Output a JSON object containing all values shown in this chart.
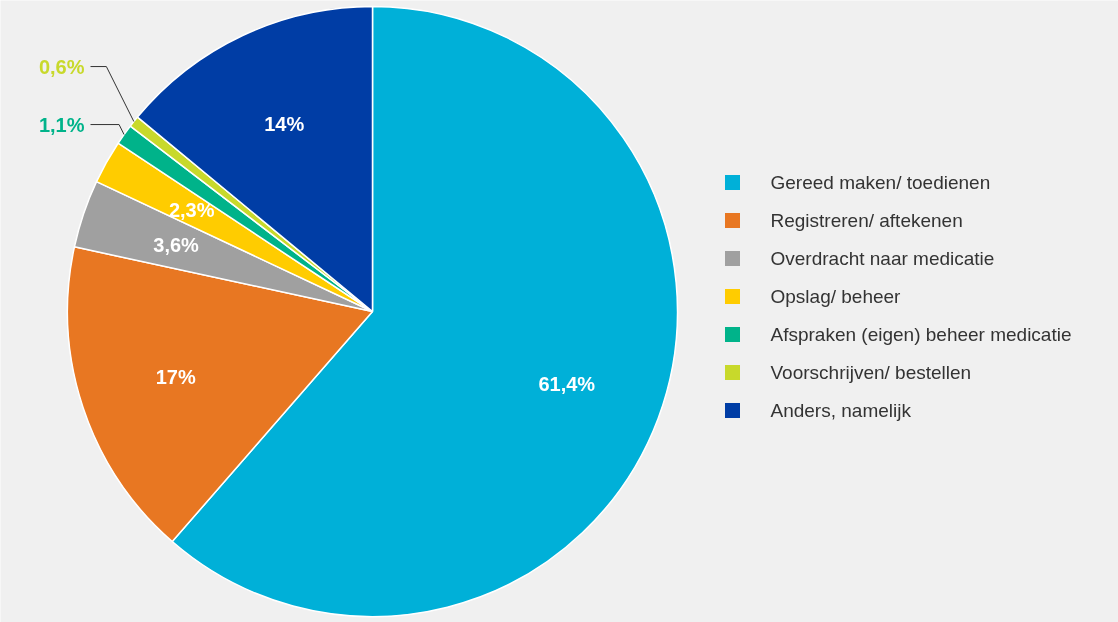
{
  "chart_data": {
    "type": "pie",
    "categories": [
      "Gereed maken/ toedienen",
      "Registreren/ aftekenen",
      "Overdracht naar medicatie",
      "Opslag/ beheer",
      "Afspraken (eigen) beheer medicatie",
      "Voorschrijven/ bestellen",
      "Anders, namelijk"
    ],
    "values": [
      61.4,
      17,
      3.6,
      2.3,
      1.1,
      0.6,
      14
    ],
    "value_labels": [
      "61,4%",
      "17%",
      "3,6%",
      "2,3%",
      "1,1%",
      "0,6%",
      "14%"
    ],
    "colors": [
      "#00b0d8",
      "#e87722",
      "#a0a0a0",
      "#ffcc00",
      "#00b38a",
      "#c8d92b",
      "#003da5"
    ],
    "legend": "right"
  }
}
